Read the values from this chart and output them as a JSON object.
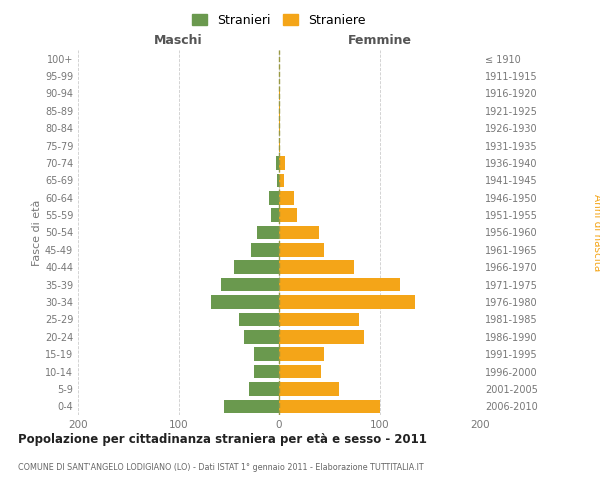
{
  "age_groups": [
    "0-4",
    "5-9",
    "10-14",
    "15-19",
    "20-24",
    "25-29",
    "30-34",
    "35-39",
    "40-44",
    "45-49",
    "50-54",
    "55-59",
    "60-64",
    "65-69",
    "70-74",
    "75-79",
    "80-84",
    "85-89",
    "90-94",
    "95-99",
    "100+"
  ],
  "birth_years": [
    "2006-2010",
    "2001-2005",
    "1996-2000",
    "1991-1995",
    "1986-1990",
    "1981-1985",
    "1976-1980",
    "1971-1975",
    "1966-1970",
    "1961-1965",
    "1956-1960",
    "1951-1955",
    "1946-1950",
    "1941-1945",
    "1936-1940",
    "1931-1935",
    "1926-1930",
    "1921-1925",
    "1916-1920",
    "1911-1915",
    "≤ 1910"
  ],
  "males": [
    55,
    30,
    25,
    25,
    35,
    40,
    68,
    58,
    45,
    28,
    22,
    8,
    10,
    2,
    3,
    0,
    0,
    0,
    0,
    0,
    0
  ],
  "females": [
    100,
    60,
    42,
    45,
    85,
    80,
    135,
    120,
    75,
    45,
    40,
    18,
    15,
    5,
    6,
    1,
    1,
    1,
    1,
    0,
    0
  ],
  "male_color": "#6a994e",
  "female_color": "#f4a518",
  "background_color": "#ffffff",
  "grid_color": "#cccccc",
  "title": "Popolazione per cittadinanza straniera per età e sesso - 2011",
  "subtitle": "COMUNE DI SANT'ANGELO LODIGIANO (LO) - Dati ISTAT 1° gennaio 2011 - Elaborazione TUTTITALIA.IT",
  "xlabel_left": "Maschi",
  "xlabel_right": "Femmine",
  "ylabel_left": "Fasce di età",
  "ylabel_right": "Anni di nascita",
  "legend_male": "Stranieri",
  "legend_female": "Straniere",
  "xlim": 200
}
